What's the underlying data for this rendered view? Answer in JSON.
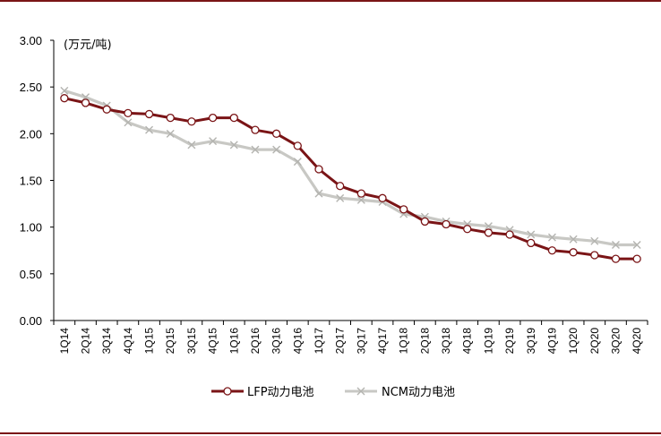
{
  "chart_data": {
    "type": "line",
    "unit_label": "(万元/吨)",
    "categories": [
      "1Q14",
      "2Q14",
      "3Q14",
      "4Q14",
      "1Q15",
      "2Q15",
      "3Q15",
      "4Q15",
      "1Q16",
      "2Q16",
      "3Q16",
      "4Q16",
      "1Q17",
      "2Q17",
      "3Q17",
      "4Q17",
      "1Q18",
      "2Q18",
      "3Q18",
      "4Q18",
      "1Q19",
      "2Q19",
      "3Q19",
      "4Q19",
      "1Q20",
      "2Q20",
      "3Q20",
      "4Q20"
    ],
    "y_ticks": [
      "0.00",
      "0.50",
      "1.00",
      "1.50",
      "2.00",
      "2.50",
      "3.00"
    ],
    "ylim": [
      0,
      3
    ],
    "grid": false,
    "legend_position": "bottom",
    "series": [
      {
        "name": "LFP动力电池",
        "color": "#7a1416",
        "marker": "circle",
        "values": [
          2.38,
          2.33,
          2.26,
          2.22,
          2.21,
          2.17,
          2.13,
          2.17,
          2.17,
          2.04,
          2.0,
          1.87,
          1.62,
          1.44,
          1.36,
          1.31,
          1.19,
          1.06,
          1.03,
          0.98,
          0.94,
          0.92,
          0.83,
          0.75,
          0.73,
          0.7,
          0.66,
          0.66
        ]
      },
      {
        "name": "NCM动力电池",
        "color": "#c8c8c4",
        "marker": "x",
        "values": [
          2.46,
          2.39,
          2.3,
          2.12,
          2.04,
          2.0,
          1.88,
          1.92,
          1.88,
          1.83,
          1.83,
          1.7,
          1.36,
          1.31,
          1.29,
          1.27,
          1.14,
          1.11,
          1.06,
          1.03,
          1.01,
          0.97,
          0.92,
          0.89,
          0.87,
          0.85,
          0.81,
          0.81
        ]
      }
    ]
  }
}
